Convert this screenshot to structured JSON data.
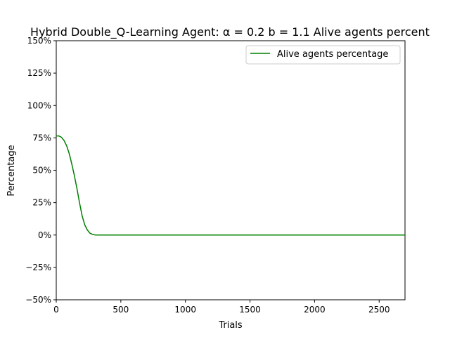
{
  "chart_data": {
    "type": "line",
    "title": "Hybrid Double_Q-Learning Agent: α = 0.2 b = 1.1 Alive agents percent",
    "xlabel": "Trials",
    "ylabel": "Percentage",
    "xlim": [
      0,
      2700
    ],
    "ylim": [
      -50,
      150
    ],
    "x_ticks": [
      0,
      500,
      1000,
      1500,
      2000,
      2500
    ],
    "x_tick_labels": [
      "0",
      "500",
      "1000",
      "1500",
      "2000",
      "2500"
    ],
    "y_ticks": [
      -50,
      -25,
      0,
      25,
      50,
      75,
      100,
      125,
      150
    ],
    "y_tick_labels": [
      "−50%",
      "−25%",
      "0%",
      "25%",
      "50%",
      "75%",
      "100%",
      "125%",
      "150%"
    ],
    "grid": false,
    "legend_position": "top-right",
    "series": [
      {
        "name": "Alive agents percentage",
        "color": "#008000",
        "x": [
          0,
          20,
          40,
          60,
          80,
          100,
          120,
          140,
          160,
          180,
          200,
          220,
          240,
          260,
          280,
          300,
          320,
          350,
          400,
          500,
          1000,
          1500,
          2000,
          2500,
          2700
        ],
        "values": [
          76.5,
          76.5,
          75.5,
          73,
          69,
          63,
          55,
          46,
          36,
          25,
          15,
          8,
          4,
          1.5,
          0.5,
          0.1,
          0,
          0,
          0,
          0,
          0,
          0,
          0,
          0,
          0
        ]
      }
    ]
  }
}
